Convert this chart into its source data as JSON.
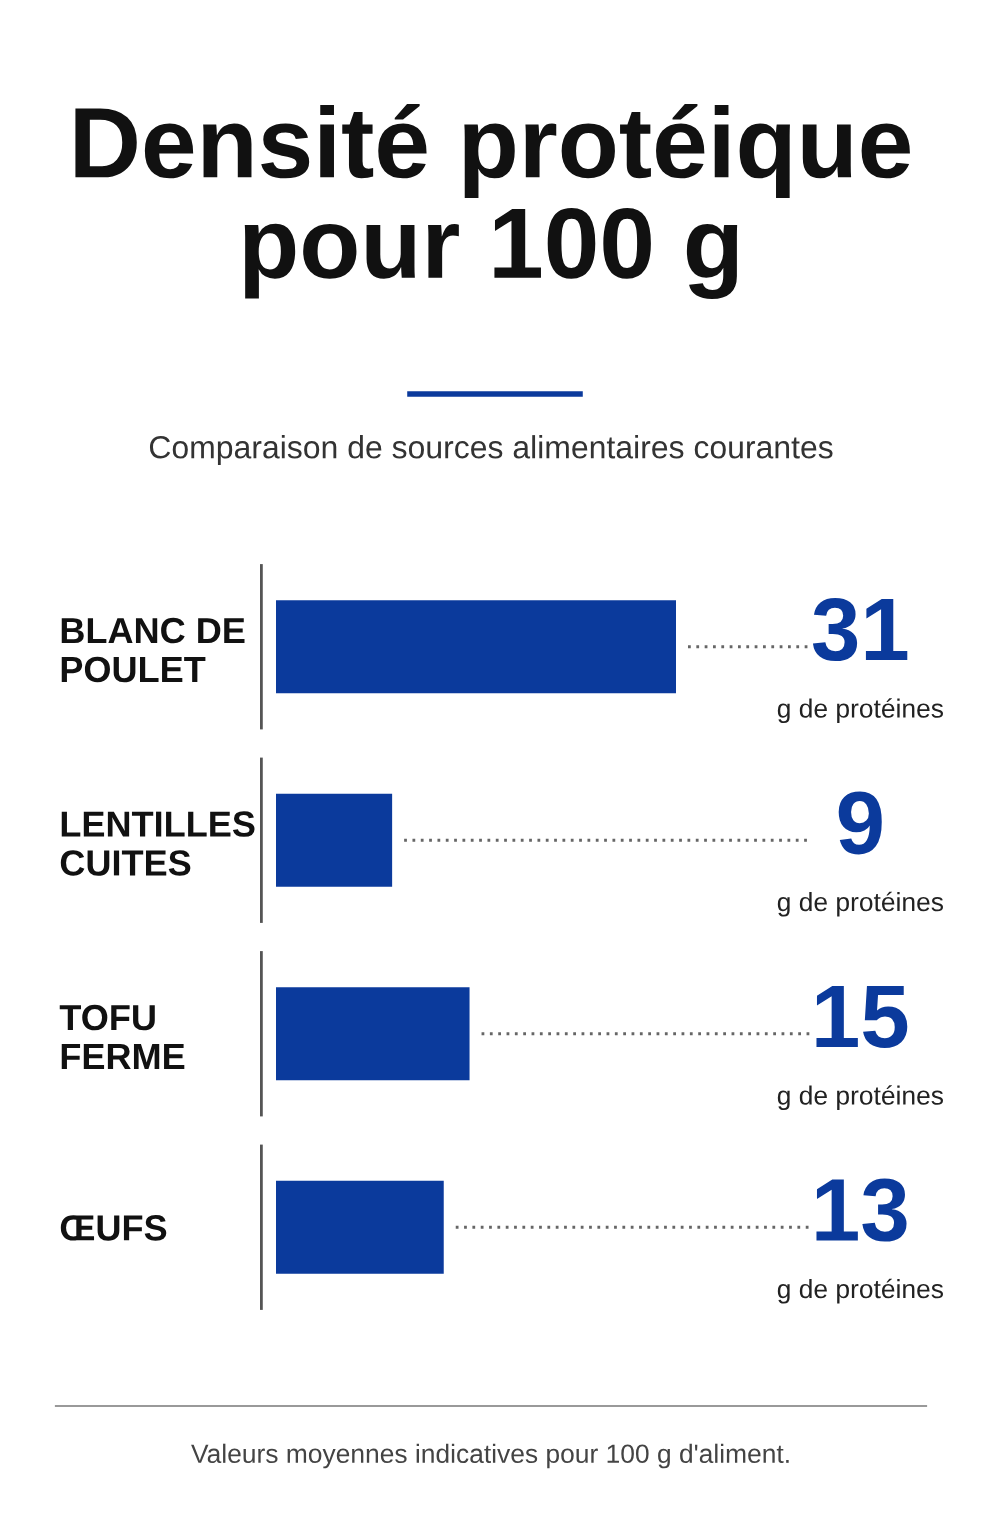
{
  "chart_data": {
    "type": "bar",
    "orientation": "horizontal",
    "title": "Densité protéique\npour 100 g",
    "subtitle": "Comparaison de sources alimentaires courantes",
    "categories": [
      "BLANC DE\nPOULET",
      "LENTILLES\nCUITES",
      "TOFU\nFERME",
      "ŒUFS"
    ],
    "values": [
      31,
      9,
      15,
      13
    ],
    "color": "#0b3a9c",
    "data_labels": true,
    "annotations": [
      "g de protéines",
      "g de protéines",
      "g de protéines",
      "g de protéines",
      "Valeurs moyennes indicatives pour 100 g d'aliment."
    ],
    "grid": false,
    "legend": false,
    "tick_labels": "y"
  }
}
